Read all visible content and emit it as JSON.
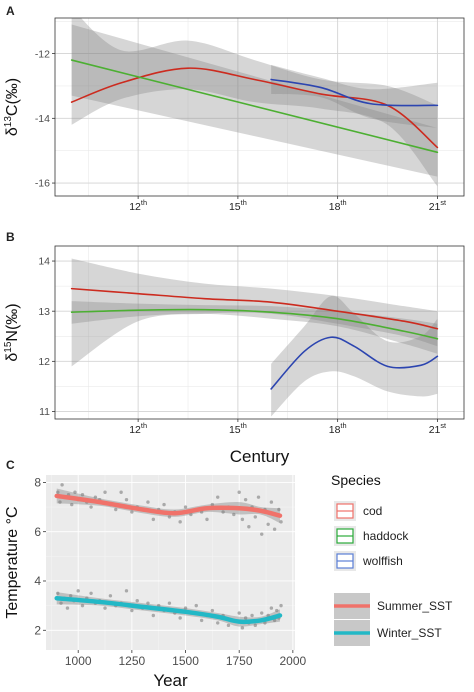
{
  "chart_data": [
    {
      "panel": "A",
      "type": "line",
      "ylabel_pre": "δ",
      "ylabel_sup": "13",
      "ylabel_post": "C(‰)",
      "xticks": [
        {
          "value": 12,
          "base": "12",
          "sup": "th"
        },
        {
          "value": 15,
          "base": "15",
          "sup": "th"
        },
        {
          "value": 18,
          "base": "18",
          "sup": "th"
        },
        {
          "value": 21,
          "base": "21",
          "sup": "st"
        }
      ],
      "xlim": [
        9.5,
        21.8
      ],
      "yticks": [
        -16,
        -14,
        -12
      ],
      "ylim": [
        -16.4,
        -10.9
      ],
      "series": [
        {
          "color": "#cc2b1f",
          "x": [
            10.0,
            11.5,
            13.5,
            15.5,
            17.5,
            19.5,
            21.0
          ],
          "y": [
            -13.5,
            -12.9,
            -12.45,
            -12.8,
            -13.25,
            -13.6,
            -14.9
          ],
          "upper": [
            -10.6,
            -11.9,
            -11.6,
            -12.2,
            -12.8,
            -13.0,
            -13.6
          ],
          "lower": [
            -14.2,
            -13.4,
            -13.1,
            -13.5,
            -13.7,
            -14.2,
            -16.1
          ]
        },
        {
          "color": "#4caf32",
          "x": [
            10.0,
            21.0
          ],
          "y": [
            -12.2,
            -15.05
          ],
          "upper": [
            -11.1,
            -14.3
          ],
          "lower": [
            -13.3,
            -15.8
          ]
        },
        {
          "color": "#2c45b0",
          "x": [
            16.0,
            17.5,
            19.0,
            21.0
          ],
          "y": [
            -12.8,
            -13.05,
            -13.55,
            -13.6
          ],
          "upper": [
            -12.35,
            -12.75,
            -13.1,
            -12.9
          ],
          "lower": [
            -13.25,
            -13.35,
            -14.0,
            -14.3
          ]
        }
      ]
    },
    {
      "panel": "B",
      "type": "line",
      "ylabel_pre": "δ",
      "ylabel_sup": "15",
      "ylabel_post": "N(‰)",
      "xlabel": "Century",
      "xticks": [
        {
          "value": 12,
          "base": "12",
          "sup": "th"
        },
        {
          "value": 15,
          "base": "15",
          "sup": "th"
        },
        {
          "value": 18,
          "base": "18",
          "sup": "th"
        },
        {
          "value": 21,
          "base": "21",
          "sup": "st"
        }
      ],
      "xlim": [
        9.5,
        21.8
      ],
      "yticks": [
        11,
        12,
        13,
        14
      ],
      "ylim": [
        10.85,
        14.3
      ],
      "series": [
        {
          "color": "#cc2b1f",
          "x": [
            10.0,
            12.0,
            14.0,
            16.0,
            18.0,
            20.0,
            21.0
          ],
          "y": [
            13.45,
            13.35,
            13.25,
            13.18,
            13.0,
            12.8,
            12.65
          ],
          "upper": [
            14.05,
            13.75,
            13.55,
            13.45,
            13.3,
            13.1,
            13.0
          ],
          "lower": [
            11.9,
            12.8,
            12.95,
            12.95,
            12.75,
            12.5,
            12.3
          ]
        },
        {
          "color": "#4caf32",
          "x": [
            10.0,
            12.0,
            14.0,
            16.0,
            18.0,
            20.0,
            21.0
          ],
          "y": [
            12.98,
            13.02,
            13.03,
            12.98,
            12.85,
            12.6,
            12.45
          ],
          "upper": [
            13.2,
            13.15,
            13.12,
            13.1,
            13.0,
            12.85,
            12.75
          ],
          "lower": [
            12.75,
            12.9,
            12.95,
            12.85,
            12.7,
            12.35,
            12.15
          ]
        },
        {
          "color": "#2c45b0",
          "x": [
            16.0,
            17.0,
            17.8,
            18.5,
            19.5,
            20.5,
            21.0
          ],
          "y": [
            11.45,
            12.2,
            12.48,
            12.3,
            11.9,
            11.92,
            12.1
          ],
          "upper": [
            11.95,
            12.7,
            13.3,
            12.95,
            12.4,
            12.5,
            12.85
          ],
          "lower": [
            10.9,
            11.6,
            11.8,
            11.7,
            11.4,
            11.3,
            11.35
          ]
        }
      ]
    },
    {
      "panel": "C",
      "type": "scatter",
      "xlabel": "Year",
      "ylabel": "Temperature °C",
      "xticks": [
        1000,
        1250,
        1500,
        1750,
        2000
      ],
      "xlim": [
        850,
        2010
      ],
      "yticks": [
        2,
        4,
        6,
        8
      ],
      "ylim": [
        1.2,
        8.3
      ],
      "legend": {
        "species_title": "Species",
        "species": [
          {
            "name": "cod",
            "color": "#f0726a"
          },
          {
            "name": "haddock",
            "color": "#2aab3a"
          },
          {
            "name": "wolffish",
            "color": "#5b7fd6"
          }
        ],
        "sst": [
          {
            "name": "Summer_SST",
            "color": "#f0726a"
          },
          {
            "name": "Winter_SST",
            "color": "#22b8c6"
          }
        ]
      },
      "series": [
        {
          "name": "Summer_SST",
          "color": "#f0726a",
          "x": [
            900,
            1100,
            1300,
            1450,
            1600,
            1750,
            1850,
            1940
          ],
          "y": [
            7.45,
            7.2,
            6.9,
            6.75,
            6.95,
            6.95,
            6.85,
            6.65
          ],
          "upper": [
            7.75,
            7.35,
            7.05,
            6.9,
            7.1,
            7.2,
            7.0,
            6.95
          ],
          "lower": [
            7.15,
            7.05,
            6.75,
            6.6,
            6.8,
            6.7,
            6.7,
            6.35
          ]
        },
        {
          "name": "Winter_SST",
          "color": "#22b8c6",
          "x": [
            900,
            1100,
            1300,
            1500,
            1650,
            1750,
            1850,
            1940
          ],
          "y": [
            3.3,
            3.15,
            2.95,
            2.75,
            2.55,
            2.35,
            2.4,
            2.6
          ],
          "upper": [
            3.55,
            3.3,
            3.1,
            2.9,
            2.7,
            2.55,
            2.55,
            2.85
          ],
          "lower": [
            3.05,
            3.0,
            2.8,
            2.6,
            2.4,
            2.15,
            2.25,
            2.35
          ]
        }
      ],
      "points": [
        {
          "x": 905,
          "y": 7.6
        },
        {
          "x": 915,
          "y": 7.2
        },
        {
          "x": 925,
          "y": 7.9
        },
        {
          "x": 940,
          "y": 7.4
        },
        {
          "x": 955,
          "y": 7.5
        },
        {
          "x": 970,
          "y": 7.1
        },
        {
          "x": 985,
          "y": 7.6
        },
        {
          "x": 1000,
          "y": 7.3
        },
        {
          "x": 1020,
          "y": 7.5
        },
        {
          "x": 1040,
          "y": 7.2
        },
        {
          "x": 1060,
          "y": 7.0
        },
        {
          "x": 1080,
          "y": 7.4
        },
        {
          "x": 1100,
          "y": 7.3
        },
        {
          "x": 1125,
          "y": 7.6
        },
        {
          "x": 1150,
          "y": 7.1
        },
        {
          "x": 1175,
          "y": 6.9
        },
        {
          "x": 1200,
          "y": 7.6
        },
        {
          "x": 1225,
          "y": 7.3
        },
        {
          "x": 1250,
          "y": 6.8
        },
        {
          "x": 1275,
          "y": 7.0
        },
        {
          "x": 1300,
          "y": 6.9
        },
        {
          "x": 1325,
          "y": 7.2
        },
        {
          "x": 1350,
          "y": 6.5
        },
        {
          "x": 1375,
          "y": 6.9
        },
        {
          "x": 1400,
          "y": 7.1
        },
        {
          "x": 1425,
          "y": 6.6
        },
        {
          "x": 1450,
          "y": 6.8
        },
        {
          "x": 1475,
          "y": 6.4
        },
        {
          "x": 1500,
          "y": 7.0
        },
        {
          "x": 1525,
          "y": 6.7
        },
        {
          "x": 1550,
          "y": 6.9
        },
        {
          "x": 1575,
          "y": 6.8
        },
        {
          "x": 1600,
          "y": 6.5
        },
        {
          "x": 1625,
          "y": 7.1
        },
        {
          "x": 1650,
          "y": 7.4
        },
        {
          "x": 1675,
          "y": 6.8
        },
        {
          "x": 1700,
          "y": 7.0
        },
        {
          "x": 1725,
          "y": 6.7
        },
        {
          "x": 1750,
          "y": 7.6
        },
        {
          "x": 1765,
          "y": 6.5
        },
        {
          "x": 1780,
          "y": 7.3
        },
        {
          "x": 1795,
          "y": 6.2
        },
        {
          "x": 1810,
          "y": 7.0
        },
        {
          "x": 1825,
          "y": 6.6
        },
        {
          "x": 1840,
          "y": 7.4
        },
        {
          "x": 1855,
          "y": 5.9
        },
        {
          "x": 1870,
          "y": 6.9
        },
        {
          "x": 1885,
          "y": 6.3
        },
        {
          "x": 1900,
          "y": 7.2
        },
        {
          "x": 1915,
          "y": 6.1
        },
        {
          "x": 1925,
          "y": 6.7
        },
        {
          "x": 1935,
          "y": 6.9
        },
        {
          "x": 1945,
          "y": 6.4
        },
        {
          "x": 905,
          "y": 3.5
        },
        {
          "x": 920,
          "y": 3.1
        },
        {
          "x": 935,
          "y": 3.3
        },
        {
          "x": 950,
          "y": 2.9
        },
        {
          "x": 965,
          "y": 3.4
        },
        {
          "x": 980,
          "y": 3.2
        },
        {
          "x": 1000,
          "y": 3.6
        },
        {
          "x": 1020,
          "y": 3.0
        },
        {
          "x": 1040,
          "y": 3.3
        },
        {
          "x": 1060,
          "y": 3.5
        },
        {
          "x": 1080,
          "y": 3.1
        },
        {
          "x": 1100,
          "y": 3.2
        },
        {
          "x": 1125,
          "y": 2.9
        },
        {
          "x": 1150,
          "y": 3.4
        },
        {
          "x": 1175,
          "y": 3.0
        },
        {
          "x": 1200,
          "y": 3.1
        },
        {
          "x": 1225,
          "y": 3.6
        },
        {
          "x": 1250,
          "y": 2.8
        },
        {
          "x": 1275,
          "y": 3.2
        },
        {
          "x": 1300,
          "y": 2.9
        },
        {
          "x": 1325,
          "y": 3.1
        },
        {
          "x": 1350,
          "y": 2.6
        },
        {
          "x": 1375,
          "y": 3.0
        },
        {
          "x": 1400,
          "y": 2.8
        },
        {
          "x": 1425,
          "y": 3.1
        },
        {
          "x": 1450,
          "y": 2.7
        },
        {
          "x": 1475,
          "y": 2.5
        },
        {
          "x": 1500,
          "y": 2.9
        },
        {
          "x": 1525,
          "y": 2.7
        },
        {
          "x": 1550,
          "y": 3.0
        },
        {
          "x": 1575,
          "y": 2.4
        },
        {
          "x": 1600,
          "y": 2.6
        },
        {
          "x": 1625,
          "y": 2.8
        },
        {
          "x": 1650,
          "y": 2.3
        },
        {
          "x": 1675,
          "y": 2.6
        },
        {
          "x": 1700,
          "y": 2.2
        },
        {
          "x": 1725,
          "y": 2.4
        },
        {
          "x": 1750,
          "y": 2.7
        },
        {
          "x": 1765,
          "y": 2.1
        },
        {
          "x": 1780,
          "y": 2.5
        },
        {
          "x": 1795,
          "y": 2.3
        },
        {
          "x": 1810,
          "y": 2.6
        },
        {
          "x": 1825,
          "y": 2.2
        },
        {
          "x": 1840,
          "y": 2.4
        },
        {
          "x": 1855,
          "y": 2.7
        },
        {
          "x": 1870,
          "y": 2.3
        },
        {
          "x": 1885,
          "y": 2.6
        },
        {
          "x": 1900,
          "y": 2.9
        },
        {
          "x": 1915,
          "y": 2.4
        },
        {
          "x": 1925,
          "y": 2.8
        },
        {
          "x": 1935,
          "y": 2.5
        },
        {
          "x": 1945,
          "y": 3.0
        }
      ]
    }
  ]
}
